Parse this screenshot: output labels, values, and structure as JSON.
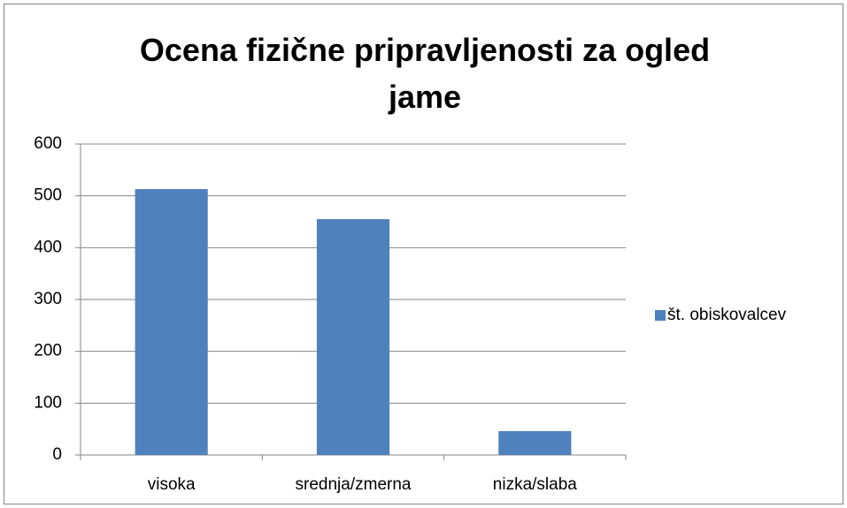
{
  "chart_data": {
    "type": "bar",
    "title": "Ocena fizične pripravljenosti za ogled jame",
    "categories": [
      "visoka",
      "srednja/zmerna",
      "nizka/slaba"
    ],
    "series": [
      {
        "name": "št. obiskovalcev",
        "color": "#4f81bd",
        "values": [
          513,
          455,
          46
        ]
      }
    ],
    "ylim": [
      0,
      600
    ],
    "yticks": [
      0,
      100,
      200,
      300,
      400,
      500,
      600
    ],
    "grid": true,
    "legend": "right"
  }
}
